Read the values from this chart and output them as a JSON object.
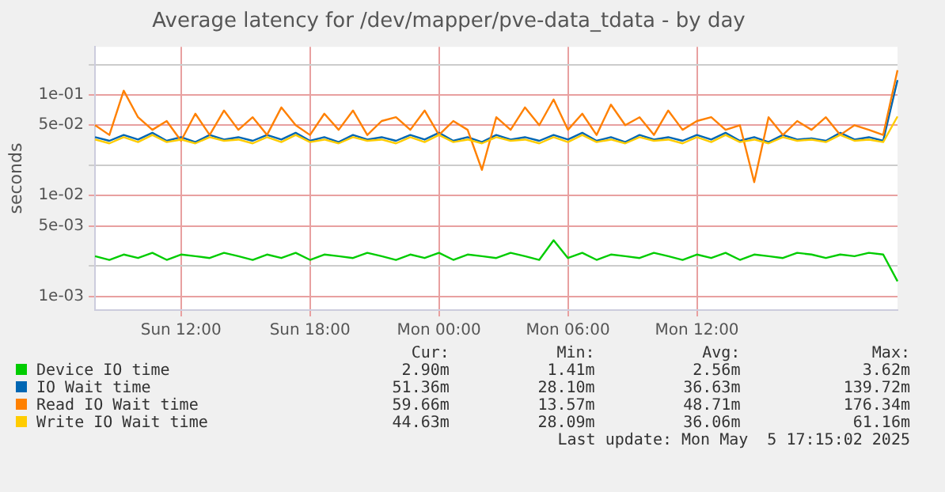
{
  "chart_data": {
    "type": "line",
    "title": "Average latency for /dev/mapper/pve-data_tdata - by day",
    "ylabel": "seconds",
    "categories": [
      null,
      null,
      null,
      null,
      null,
      null,
      "Sun 12:00",
      null,
      null,
      null,
      null,
      null,
      null,
      null,
      null,
      "Sun 18:00",
      null,
      null,
      null,
      null,
      null,
      null,
      null,
      null,
      "Mon 00:00",
      null,
      null,
      null,
      null,
      null,
      null,
      null,
      null,
      "Mon 06:00",
      null,
      null,
      null,
      null,
      null,
      null,
      null,
      null,
      "Mon 12:00",
      null,
      null,
      null,
      null,
      null,
      null,
      null,
      null,
      null,
      null,
      null,
      null,
      null,
      null
    ],
    "series": [
      {
        "name": "Device IO time",
        "color": "#00cc00",
        "values": [
          0.0025,
          0.0023,
          0.0026,
          0.0024,
          0.0027,
          0.0023,
          0.0026,
          0.0025,
          0.0024,
          0.0027,
          0.0025,
          0.0023,
          0.0026,
          0.0024,
          0.0027,
          0.0023,
          0.0026,
          0.0025,
          0.0024,
          0.0027,
          0.0025,
          0.0023,
          0.0026,
          0.0024,
          0.0027,
          0.0023,
          0.0026,
          0.0025,
          0.0024,
          0.0027,
          0.0025,
          0.0023,
          0.0036,
          0.0024,
          0.0027,
          0.0023,
          0.0026,
          0.0025,
          0.0024,
          0.0027,
          0.0025,
          0.0023,
          0.0026,
          0.0024,
          0.0027,
          0.0023,
          0.0026,
          0.0025,
          0.0024,
          0.0027,
          0.0026,
          0.0024,
          0.0026,
          0.0025,
          0.0027,
          0.0026,
          0.00141
        ]
      },
      {
        "name": "IO Wait time",
        "color": "#0066b3",
        "values": [
          0.038,
          0.035,
          0.04,
          0.036,
          0.042,
          0.035,
          0.038,
          0.034,
          0.04,
          0.036,
          0.038,
          0.035,
          0.04,
          0.036,
          0.042,
          0.035,
          0.038,
          0.034,
          0.04,
          0.036,
          0.038,
          0.035,
          0.04,
          0.036,
          0.042,
          0.035,
          0.038,
          0.034,
          0.04,
          0.036,
          0.038,
          0.035,
          0.04,
          0.036,
          0.042,
          0.035,
          0.038,
          0.034,
          0.04,
          0.036,
          0.038,
          0.035,
          0.04,
          0.036,
          0.042,
          0.035,
          0.038,
          0.034,
          0.04,
          0.036,
          0.037,
          0.035,
          0.042,
          0.036,
          0.038,
          0.035,
          0.14
        ]
      },
      {
        "name": "Read IO Wait time",
        "color": "#ff8000",
        "values": [
          0.05,
          0.04,
          0.11,
          0.06,
          0.045,
          0.055,
          0.035,
          0.065,
          0.04,
          0.07,
          0.045,
          0.06,
          0.04,
          0.075,
          0.05,
          0.04,
          0.065,
          0.045,
          0.07,
          0.04,
          0.055,
          0.06,
          0.045,
          0.07,
          0.04,
          0.055,
          0.045,
          0.018,
          0.06,
          0.045,
          0.075,
          0.05,
          0.09,
          0.045,
          0.065,
          0.04,
          0.08,
          0.05,
          0.06,
          0.04,
          0.07,
          0.045,
          0.055,
          0.06,
          0.045,
          0.05,
          0.0136,
          0.06,
          0.04,
          0.055,
          0.045,
          0.06,
          0.04,
          0.05,
          0.045,
          0.04,
          0.176
        ]
      },
      {
        "name": "Write IO Wait time",
        "color": "#ffcc00",
        "values": [
          0.036,
          0.033,
          0.038,
          0.034,
          0.04,
          0.034,
          0.036,
          0.033,
          0.038,
          0.035,
          0.036,
          0.033,
          0.038,
          0.034,
          0.04,
          0.034,
          0.036,
          0.033,
          0.038,
          0.035,
          0.036,
          0.033,
          0.038,
          0.034,
          0.04,
          0.034,
          0.036,
          0.033,
          0.038,
          0.035,
          0.036,
          0.033,
          0.038,
          0.034,
          0.04,
          0.034,
          0.036,
          0.033,
          0.038,
          0.035,
          0.036,
          0.033,
          0.038,
          0.034,
          0.04,
          0.034,
          0.036,
          0.033,
          0.038,
          0.035,
          0.036,
          0.034,
          0.04,
          0.035,
          0.036,
          0.034,
          0.061
        ]
      }
    ],
    "ylim": [
      0.00073,
      0.3
    ],
    "yticks": [
      {
        "value": 0.001,
        "label": "1e-03"
      },
      {
        "value": 0.002,
        "label": null
      },
      {
        "value": 0.005,
        "label": "5e-03"
      },
      {
        "value": 0.01,
        "label": "1e-02"
      },
      {
        "value": 0.02,
        "label": null
      },
      {
        "value": 0.05,
        "label": "5e-02"
      },
      {
        "value": 0.1,
        "label": "1e-01"
      },
      {
        "value": 0.2,
        "label": null
      }
    ],
    "log": "y",
    "grid": true,
    "legend": "bottom",
    "marker": "none",
    "line_style": "solid",
    "annotations": [
      "Cur:",
      "Min:",
      "Avg:",
      "Max:",
      "2.90m",
      "1.41m",
      "2.56m",
      "3.62m",
      "51.36m",
      "28.10m",
      "36.63m",
      "139.72m",
      "59.66m",
      "13.57m",
      "48.71m",
      "176.34m",
      "44.63m",
      "28.09m",
      "36.06m",
      "61.16m",
      "Last update: Mon May  5 17:15:02 2025"
    ]
  }
}
